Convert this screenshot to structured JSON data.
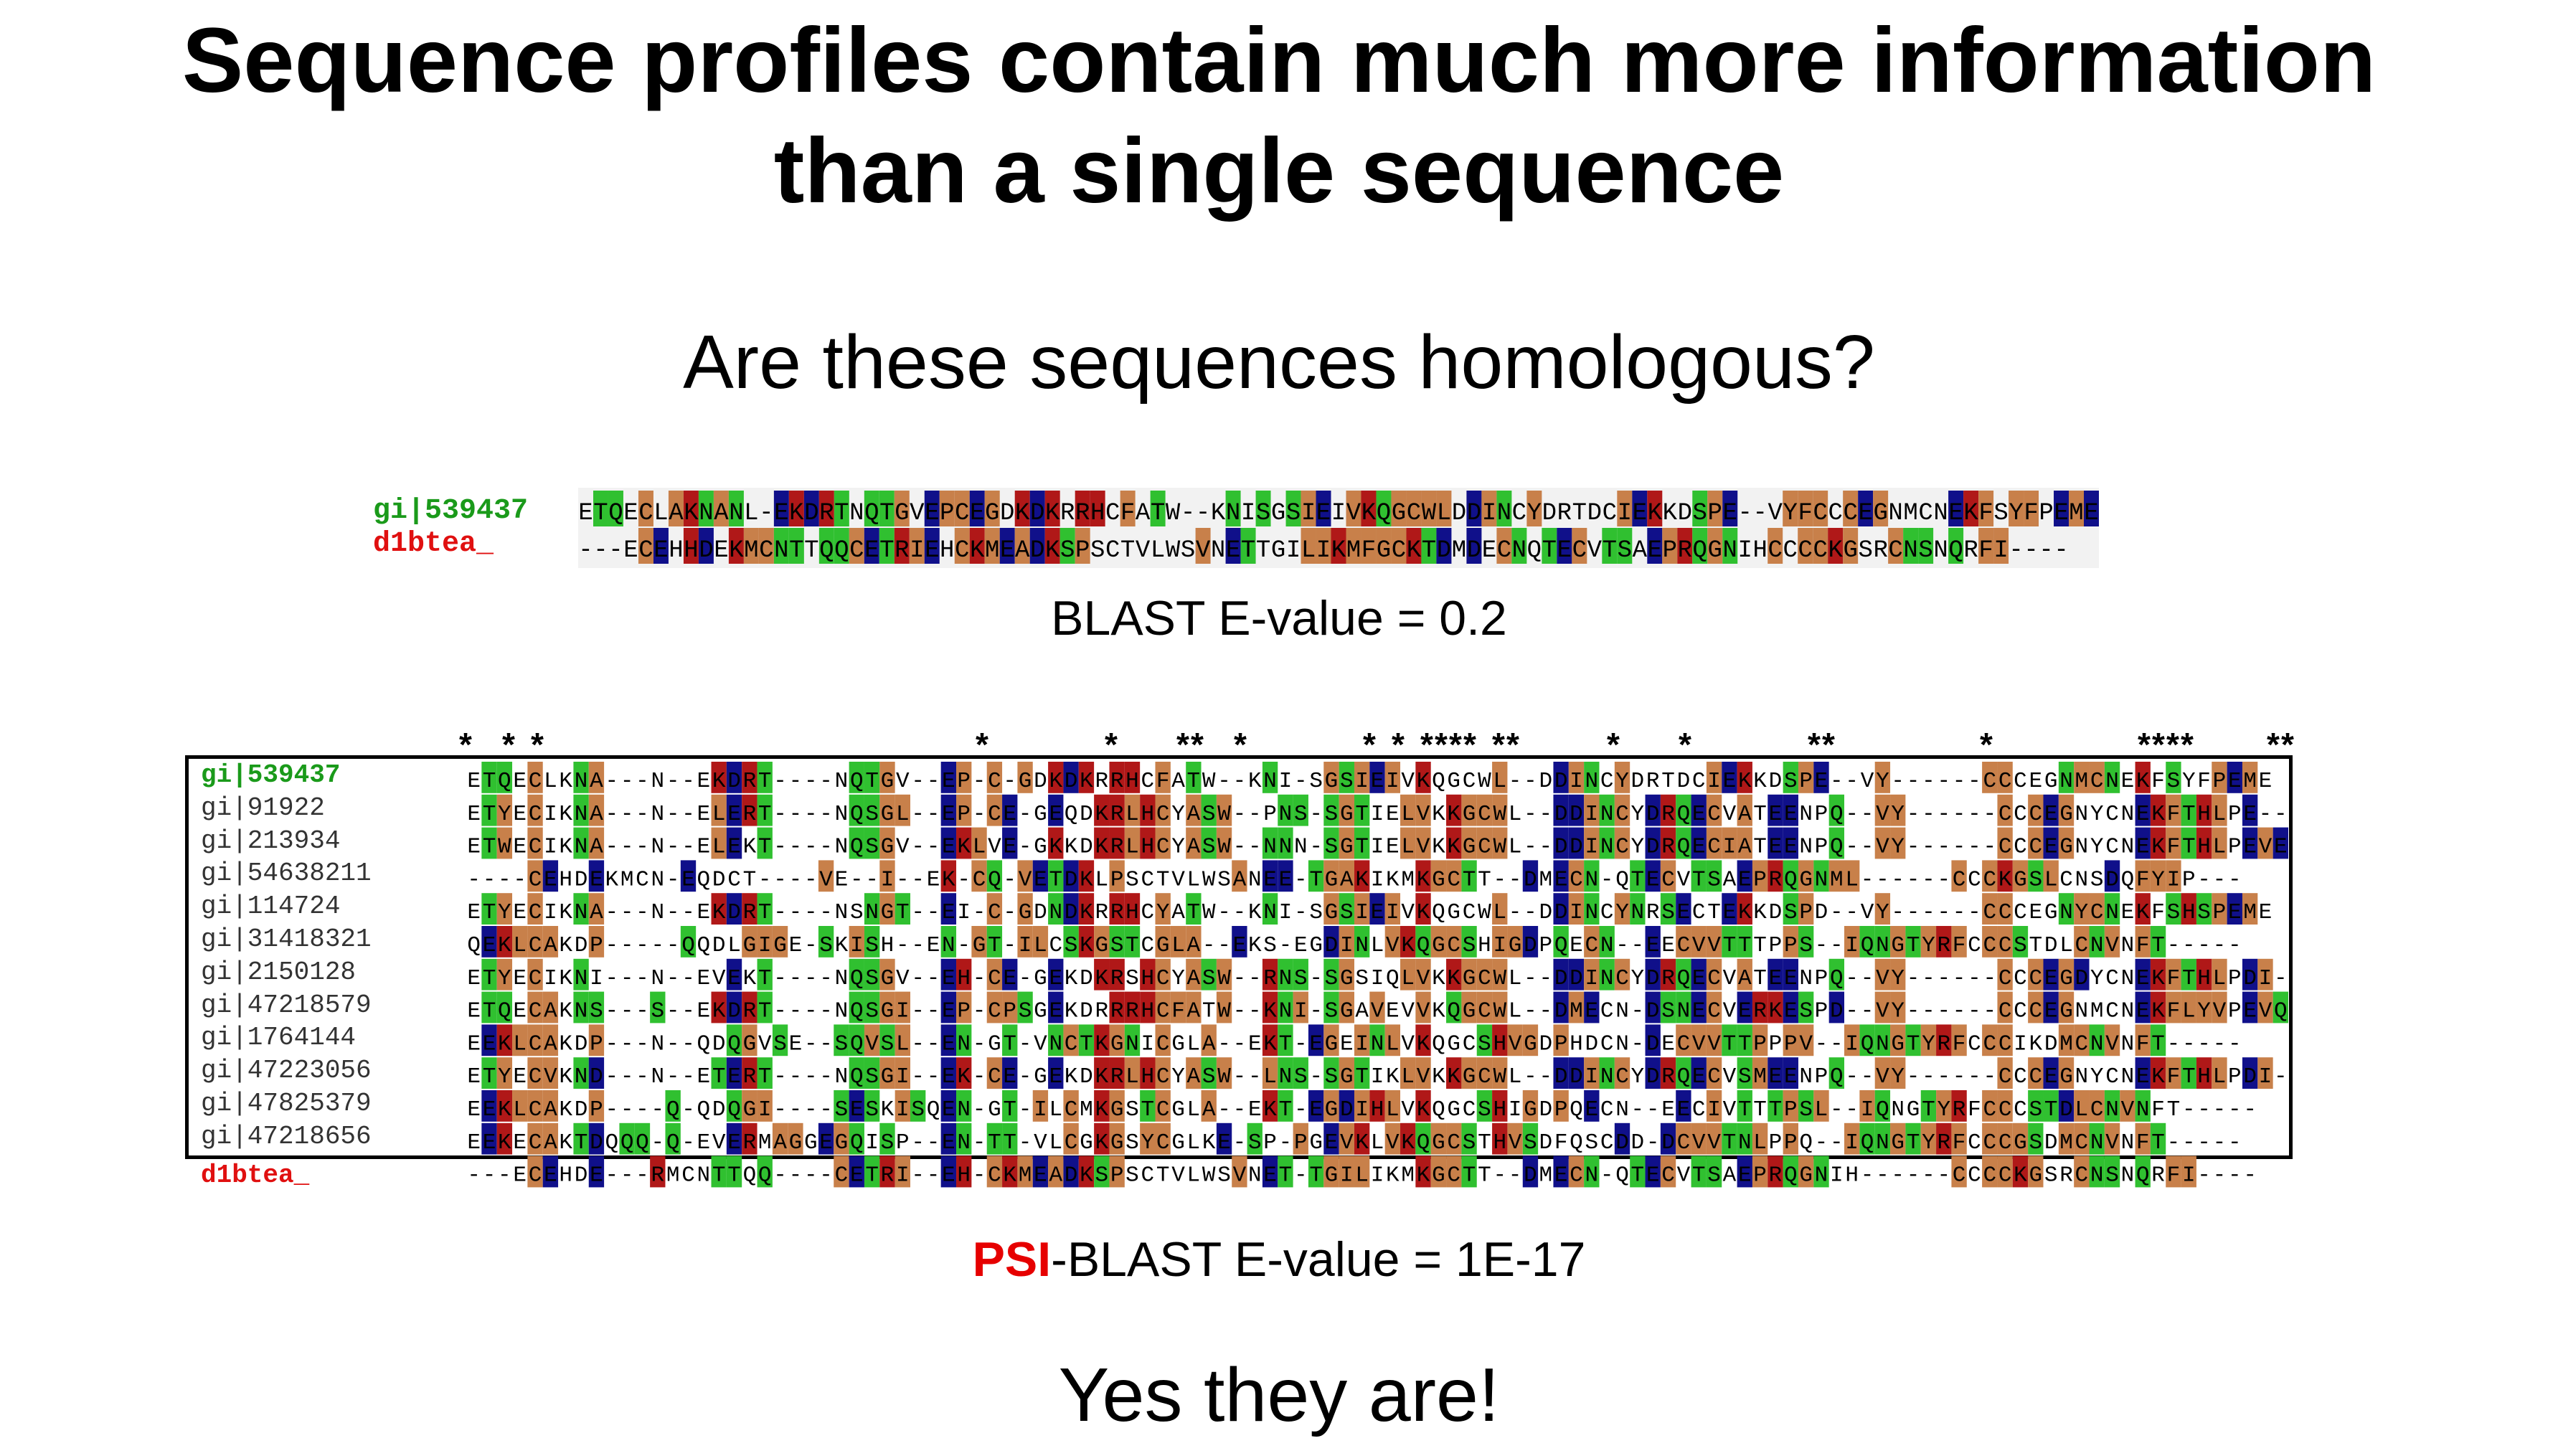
{
  "slide": {
    "title_line1": "Sequence profiles contain much more information",
    "title_line2": "than a single sequence",
    "question": "Are these sequences homologous?",
    "blast_caption": "BLAST E-value = 0.2",
    "psi_prefix": "PSI",
    "psi_rest": "-BLAST E-value =  1E-17",
    "answer": "Yes they are!"
  },
  "pairwise": {
    "query_label": "gi|539437",
    "subject_label": "d1btea_",
    "query_color": "#1a9a1a",
    "subject_color": "#e01010",
    "query_seq": "ETQECLAKNANL-EKDRTNQTGVEPCEGDKDKRRHCFATW--KNISGSIEIVKQGCWLDDINCYDRTDCIEKKDSPE--VYFCCCEGNMCNEKFSYFPEME",
    "subject_seq": "---ECEHHDEKMCNTTQQCETRIEHCKMEADKSPSCTVLWSVNETTGILIKMFGCKTDMDECNQTECVTSAEPRQGNIHCCCCKGSRCNSNQRFI----"
  },
  "psi": {
    "star_row": "*  * *                              *        *    **  *        * * **** **      *    *        **          *          ****     **",
    "rows": [
      {
        "label": "gi|539437",
        "highlight": "query"
      },
      {
        "label": "gi|91922"
      },
      {
        "label": "gi|213934"
      },
      {
        "label": "gi|54638211"
      },
      {
        "label": "gi|114724"
      },
      {
        "label": "gi|31418321"
      },
      {
        "label": "gi|2150128"
      },
      {
        "label": "gi|47218579"
      },
      {
        "label": "gi|1764144"
      },
      {
        "label": "gi|47223056"
      },
      {
        "label": "gi|47825379"
      },
      {
        "label": "gi|47218656"
      },
      {
        "label": "d1btea_",
        "highlight": "subject"
      }
    ],
    "sequences": [
      "ETQECLKNA---N--EKDRT----NQTGV--EP-C-GDKDKRRHCFATW--KNI-SGSIEIVKQGCWL--DDINCYDRTDCIEKKDSPE--VY------CCCEGNMCNEKFSYFPEME",
      "ETYECIKNA---N--ELERT----NQSGL--EP-CE-GEQDKRLHCYASW--PNS-SGTIELVKKGCWL--DDINCYDRQECVATEENPQ--VY------CCCEGNYCNEKFTHLPE--",
      "ETWECIKNA---N--ELEKT----NQSGV--EKLVE-GKKDKRLHCYASW--NNN-SGTIELVKKGCWL--DDINCYDRQECIATEENPQ--VY------CCCEGNYCNEKFTHLPEVE",
      "----CEHDEKMCN-EQDCT----VE--I--EK-CQ-VETDKLPSCTVLWSANEE-TGAKIKMKGCTT--DMECN-QTECVTSAEPRQGNML------CCCKGSLCNSDQFYIP---",
      "ETYECIKNA---N--EKDRT----NSNGT--EI-C-GDNDKRRHCYATW--KNI-SGSIEIVKQGCWL--DDINCYNRSECTEKKDSPD--VY------CCCEGNYCNEKFSHSPEME",
      "QEKLCAKDP-----QQDLGIGE-SKISH--EN-GT-ILCSKGSTCGLA--EKS-EGDINLVKQGCSHIGDPQECN--EECVVTTTPPS--IQNGTYRFCCCSTDLCNVNFT-----",
      "ETYECIKNI---N--EVEKT----NQSGV--EH-CE-GEKDKRSHCYASW--RNS-SGSIQLVKKGCWL--DDINCYDRQECVATEENPQ--VY------CCCEGDYCNEKFTHLPDI-",
      "ETQECAKNS---S--EKDRT----NQSGI--EP-CPSGEKDRRRHCFATW--KNI-SGAVEVVKQGCWL--DMECN-DSNECVERKESPD--VY------CCCEGNMCNEKFLYVPEVQ",
      "EEKLCAKDP---N--QDQGVSE--SQVSL--EN-GT-VNCTKGNICGLA--EKT-EGEINLVKQGCSHVGDPHDCN-DECVVTTPPPV--IQNGTYRFCCCIKDMCNVNFT-----",
      "ETYECVKND---N--ETERT----NQSGI--EK-CE-GEKDKRLHCYASW--LNS-SGTIKLVKKGCWL--DDINCYDRQECVSMEENPQ--VY------CCCEGNYCNEKFTHLPDI-",
      "EEKLCAKDP----Q-QDQGI----SESKISQEN-GT-ILCMKGSTCGLA--EKT-EGDIHLVKQGCSHIGDPQECN--EECIVTTTPSL--IQNGTYRFCCCSTDLCNVNFT-----",
      "EEKECAKTDQQQ-Q-EVERMAGGEGQISP--EN-TT-VLCGKGSYCGLKE-SP-PGEVKLVKQGCSTHVSDFQSCDD-DCVVTNLPPQ--IQNGTYRFCCCGSDMCNVNFT-----",
      "---ECEHDE---RMCNTTQQ----CETRI--EH-CKMEADKSPSCTVLWSVNET-TGILIKMKGCTT--DMECN-QTECVTSAEPRQGNIH------CCCCKGSRCNSNQRFI----"
    ],
    "palette": {
      "tan": "#c8804a",
      "red": "#b01818",
      "green": "#30c030",
      "blue": "#10108a",
      "gray": "#d8d8d8"
    }
  }
}
